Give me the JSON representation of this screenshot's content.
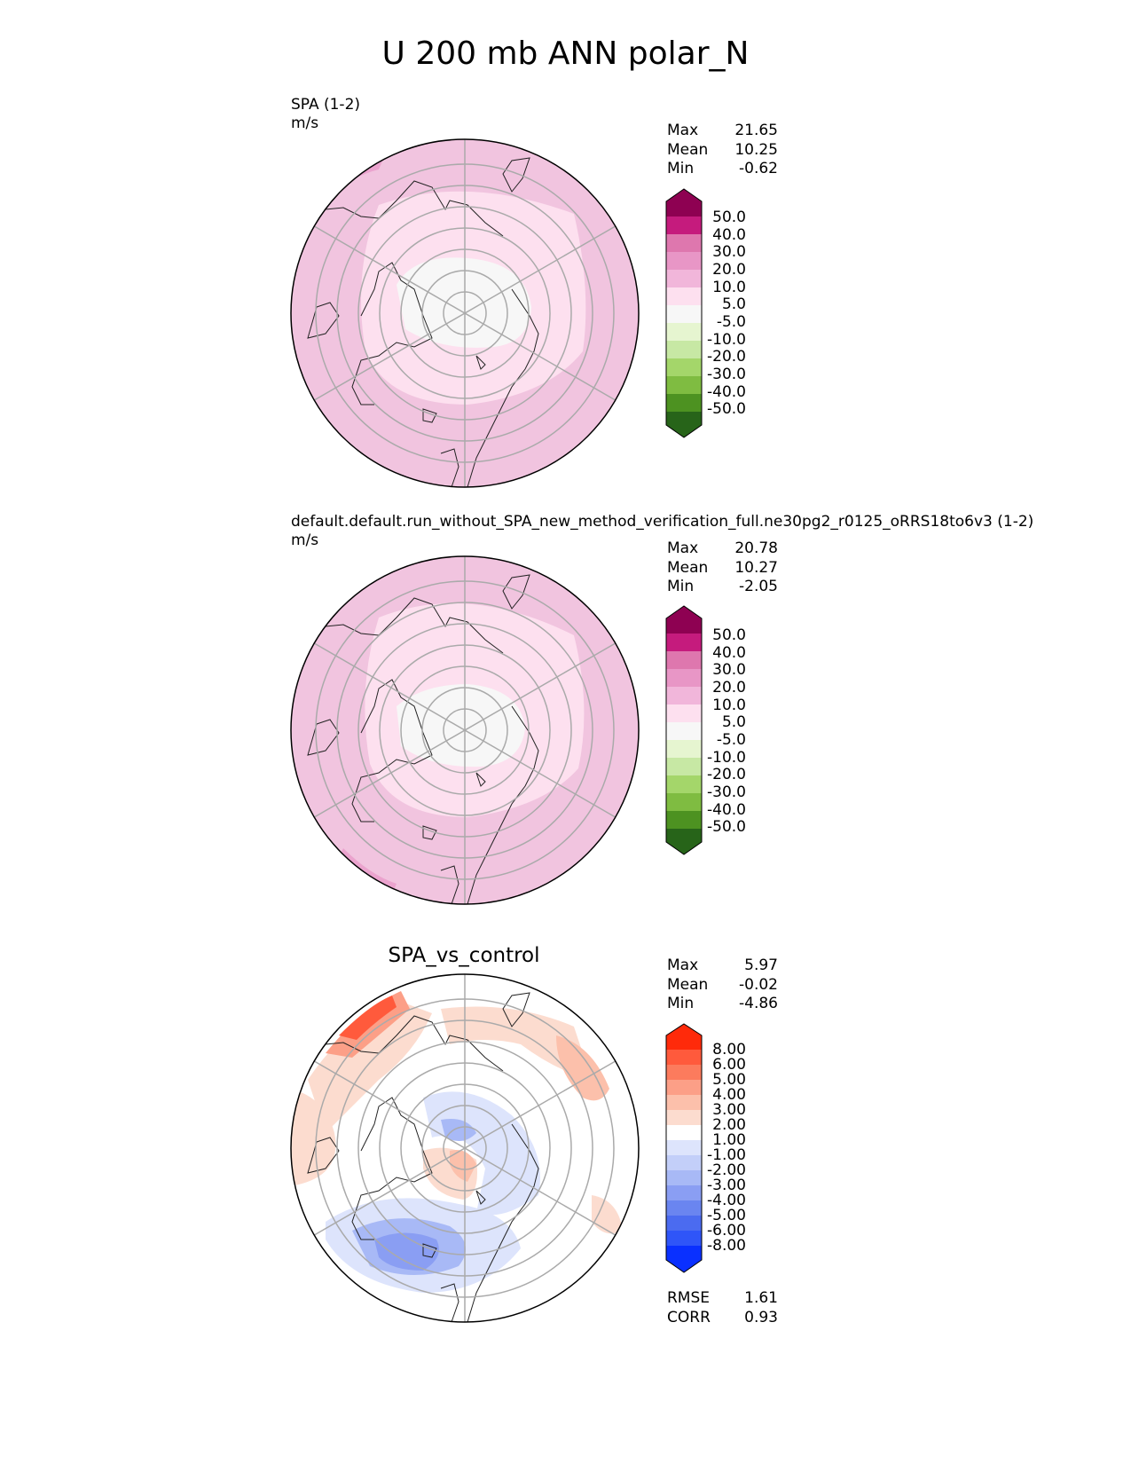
{
  "title": "U 200 mb ANN polar_N",
  "colors": {
    "pos": [
      "#f7f7f7",
      "#fde0ef",
      "#f1b6da",
      "#e896c6",
      "#de77ae",
      "#c51b7d",
      "#8e0152"
    ],
    "neg": [
      "#f7f7f7",
      "#e6f5d0",
      "#c7e8a4",
      "#a4d66a",
      "#7fbc41",
      "#5ea02d",
      "#4d9221",
      "#276419"
    ],
    "diff_pos": [
      "#fcdccf",
      "#fcc0ab",
      "#fc9f87",
      "#fc7b5d",
      "#ff5a3c",
      "#ff2a0a"
    ],
    "diff_neg": [
      "#dde4fc",
      "#c3cff9",
      "#a8b9f6",
      "#8a9ef3",
      "#6a85f0",
      "#4b6bf0",
      "#2f55f8",
      "#0a30ff"
    ]
  },
  "panels": [
    {
      "label": "SPA (1-2)",
      "units": "m/s",
      "stats": [
        {
          "k": "Max",
          "v": "21.65"
        },
        {
          "k": "Mean",
          "v": "10.25"
        },
        {
          "k": "Min",
          "v": "-0.62"
        }
      ],
      "ticks": [
        "50.0",
        "40.0",
        "30.0",
        "20.0",
        "10.0",
        "5.0",
        "-5.0",
        "-10.0",
        "-20.0",
        "-30.0",
        "-40.0",
        "-50.0"
      ]
    },
    {
      "label": "default.default.run_without_SPA_new_method_verification_full.ne30pg2_r0125_oRRS18to6v3 (1-2)",
      "units": "m/s",
      "stats": [
        {
          "k": "Max",
          "v": "20.78"
        },
        {
          "k": "Mean",
          "v": "10.27"
        },
        {
          "k": "Min",
          "v": "-2.05"
        }
      ],
      "ticks": [
        "50.0",
        "40.0",
        "30.0",
        "20.0",
        "10.0",
        "5.0",
        "-5.0",
        "-10.0",
        "-20.0",
        "-30.0",
        "-40.0",
        "-50.0"
      ]
    },
    {
      "title": "SPA_vs_control",
      "stats": [
        {
          "k": "Max",
          "v": "5.97"
        },
        {
          "k": "Mean",
          "v": "-0.02"
        },
        {
          "k": "Min",
          "v": "-4.86"
        }
      ],
      "ticks": [
        "8.00",
        "6.00",
        "5.00",
        "4.00",
        "3.00",
        "2.00",
        "1.00",
        "-1.00",
        "-2.00",
        "-3.00",
        "-4.00",
        "-5.00",
        "-6.00",
        "-8.00"
      ],
      "metrics": [
        {
          "k": "RMSE",
          "v": "1.61"
        },
        {
          "k": "CORR",
          "v": "0.93"
        }
      ]
    }
  ]
}
